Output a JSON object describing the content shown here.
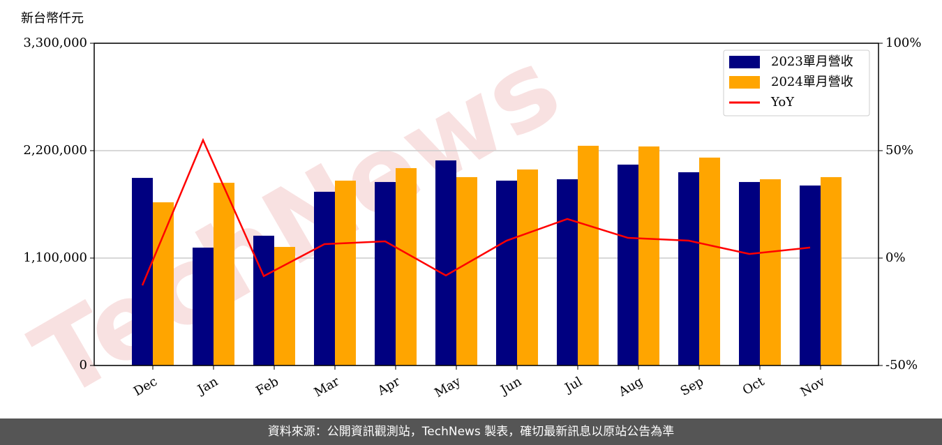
{
  "chart_data": {
    "type": "bar-line",
    "y_axis_label": "新台幣仟元",
    "watermark": "TechNews",
    "footer": "資料來源：公開資訊觀測站，TechNews 製表，確切最新訊息以原站公告為準",
    "categories": [
      "Dec",
      "Jan",
      "Feb",
      "Mar",
      "Apr",
      "May",
      "Jun",
      "Jul",
      "Aug",
      "Sep",
      "Oct",
      "Nov"
    ],
    "series": [
      {
        "name": "2023單月營收",
        "color": "#000080",
        "type": "bar",
        "values": [
          1921000,
          1207000,
          1329000,
          1779000,
          1879000,
          2100000,
          1893000,
          1907000,
          2057000,
          1979000,
          1879000,
          1843000
        ]
      },
      {
        "name": "2024單月營收",
        "color": "#ffa500",
        "type": "bar",
        "values": [
          1671000,
          1871000,
          1214000,
          1893000,
          2021000,
          1929000,
          2007000,
          2250000,
          2243000,
          2129000,
          1907000,
          1929000
        ]
      },
      {
        "name": "YoY",
        "color": "#ff0000",
        "type": "line",
        "axis": "y2",
        "values": [
          -12.7,
          54.9,
          -8.4,
          6.5,
          7.8,
          -8.1,
          8.1,
          18.2,
          9.4,
          8.1,
          1.9,
          4.9
        ]
      }
    ],
    "ylim": [
      0,
      3300000
    ],
    "yticks": [
      0,
      {
        "value": 1100000,
        "label": "1,100,000"
      },
      {
        "value": 2200000,
        "label": "2,200,000"
      },
      {
        "value": 3300000,
        "label": "3,300,000"
      }
    ],
    "y2lim": [
      -50,
      100
    ],
    "y2ticks": [
      {
        "value": -50,
        "label": "-50%"
      },
      {
        "value": 0,
        "label": "0%"
      },
      {
        "value": 50,
        "label": "50%"
      },
      {
        "value": 100,
        "label": "100%"
      }
    ],
    "grid": true,
    "legend": "upper right"
  }
}
